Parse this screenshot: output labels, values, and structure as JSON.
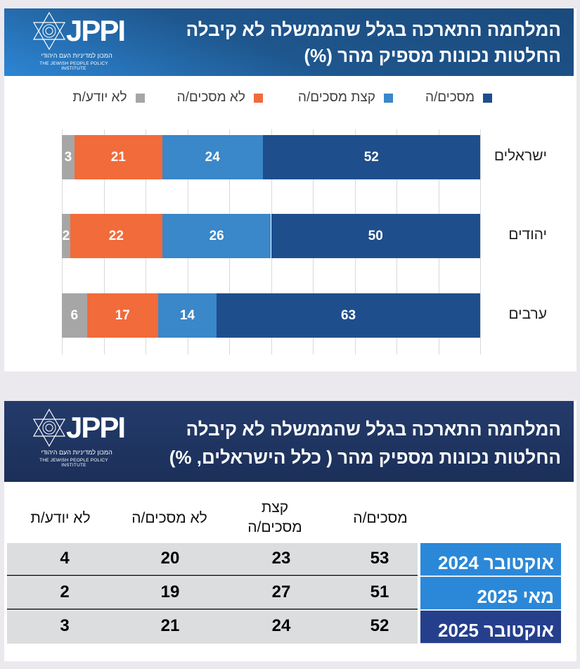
{
  "top_panel": {
    "title_line1": "המלחמה התארכה בגלל שהממשלה לא קיבלה",
    "title_line2": "החלטות נכונות מספיק מהר (%)",
    "logo": {
      "mark": "JPPI",
      "hebrew": "המכון למדיניות העם היהודי",
      "english": "THE JEWISH PEOPLE POLICY INSTITUTE"
    }
  },
  "chart_data": {
    "type": "bar",
    "orientation": "horizontal",
    "stacked": true,
    "title": "המלחמה התארכה בגלל שהממשלה לא קיבלה החלטות נכונות מספיק מהר (%)",
    "categories": [
      "ישראלים",
      "יהודים",
      "ערבים"
    ],
    "series": [
      {
        "name": "מסכים/ה",
        "color": "#1f4e8c",
        "values": [
          52,
          50,
          63
        ]
      },
      {
        "name": "קצת מסכים/ה",
        "color": "#3a87c9",
        "values": [
          24,
          26,
          14
        ]
      },
      {
        "name": "לא מסכים/ה",
        "color": "#f26b3a",
        "values": [
          21,
          22,
          17
        ]
      },
      {
        "name": "לא יודע/ת",
        "color": "#a6a6a6",
        "values": [
          3,
          2,
          6
        ]
      }
    ],
    "xlim": [
      0,
      100
    ],
    "grid": true,
    "legend": "top"
  },
  "bottom_panel": {
    "title_line1": "המלחמה התארכה בגלל שהממשלה לא קיבלה",
    "title_line2": "החלטות נכונות מספיק מהר ( כלל הישראלים, %)",
    "logo": {
      "mark": "JPPI",
      "hebrew": "המכון למדיניות העם היהודי",
      "english": "THE JEWISH PEOPLE POLICY INSTITUTE"
    },
    "table": {
      "headers": [
        "מסכים/ה",
        "קצת מסכים/ה",
        "לא מסכים/ה",
        "לא יודע/ת"
      ],
      "rows": [
        {
          "label": "אוקטובר 2024",
          "color": "#2b88d8",
          "values": [
            "53",
            "23",
            "20",
            "4"
          ]
        },
        {
          "label": "מאי 2025",
          "color": "#2b88d8",
          "values": [
            "51",
            "27",
            "19",
            "2"
          ]
        },
        {
          "label": "אוקטובר 2025",
          "color": "#253f8d",
          "values": [
            "52",
            "24",
            "21",
            "3"
          ]
        }
      ]
    }
  }
}
